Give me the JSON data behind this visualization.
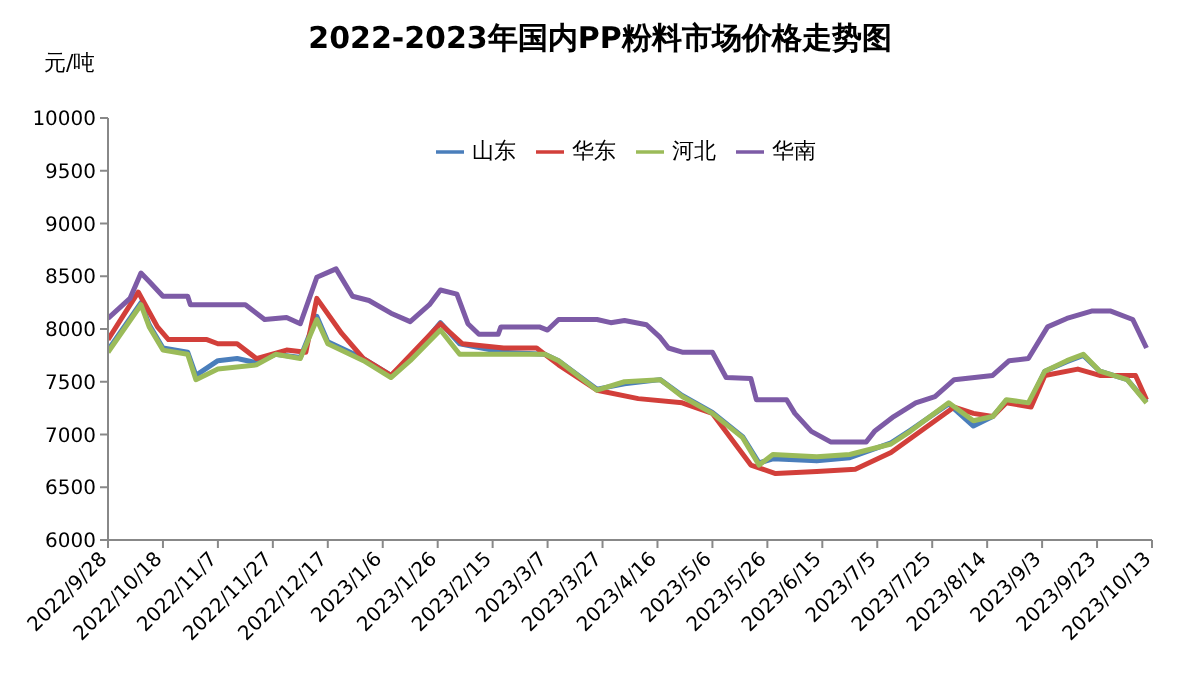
{
  "chart_data": {
    "type": "line",
    "title": "2022-2023年国内PP粉料市场价格走势图",
    "ylabel": "元/吨",
    "legend": "top",
    "marker": "none",
    "line_style": "solid",
    "xlim": [
      "2022-09-28",
      "2023-10-13"
    ],
    "xticks": [
      {
        "value": "2022-09-28",
        "label": "2022/9/28"
      },
      {
        "value": "2022-10-18",
        "label": "2022/10/18"
      },
      {
        "value": "2022-11-07",
        "label": "2022/11/7"
      },
      {
        "value": "2022-11-27",
        "label": "2022/11/27"
      },
      {
        "value": "2022-12-17",
        "label": "2022/12/17"
      },
      {
        "value": "2023-01-06",
        "label": "2023/1/6"
      },
      {
        "value": "2023-01-26",
        "label": "2023/1/26"
      },
      {
        "value": "2023-02-15",
        "label": "2023/2/15"
      },
      {
        "value": "2023-03-07",
        "label": "2023/3/7"
      },
      {
        "value": "2023-03-27",
        "label": "2023/3/27"
      },
      {
        "value": "2023-04-16",
        "label": "2023/4/16"
      },
      {
        "value": "2023-05-06",
        "label": "2023/5/6"
      },
      {
        "value": "2023-05-26",
        "label": "2023/5/26"
      },
      {
        "value": "2023-06-15",
        "label": "2023/6/15"
      },
      {
        "value": "2023-07-05",
        "label": "2023/7/5"
      },
      {
        "value": "2023-07-25",
        "label": "2023/7/25"
      },
      {
        "value": "2023-08-14",
        "label": "2023/8/14"
      },
      {
        "value": "2023-09-03",
        "label": "2023/9/3"
      },
      {
        "value": "2023-09-23",
        "label": "2023/9/23"
      },
      {
        "value": "2023-10-13",
        "label": "2023/10/13"
      }
    ],
    "ylim": [
      6000,
      10000
    ],
    "yticks": [
      6000,
      6500,
      7000,
      7500,
      8000,
      8500,
      9000,
      9500,
      10000
    ],
    "series": [
      {
        "name": "山东",
        "color": "#4a7ebb",
        "x": [
          "2022-09-28",
          "2022-10-10",
          "2022-10-13",
          "2022-10-18",
          "2022-10-27",
          "2022-10-30",
          "2022-11-07",
          "2022-11-14",
          "2022-11-21",
          "2022-11-28",
          "2022-12-07",
          "2022-12-13",
          "2022-12-17",
          "2022-12-30",
          "2023-01-09",
          "2023-01-16",
          "2023-01-27",
          "2023-02-03",
          "2023-02-19",
          "2023-03-06",
          "2023-03-11",
          "2023-03-25",
          "2023-04-04",
          "2023-04-17",
          "2023-04-25",
          "2023-05-06",
          "2023-05-17",
          "2023-05-23",
          "2023-05-28",
          "2023-06-13",
          "2023-06-25",
          "2023-07-10",
          "2023-07-17",
          "2023-07-31",
          "2023-08-09",
          "2023-08-16",
          "2023-08-21",
          "2023-08-29",
          "2023-09-04",
          "2023-09-12",
          "2023-09-18",
          "2023-09-24",
          "2023-10-04",
          "2023-10-11"
        ],
        "values": [
          7800,
          8250,
          8040,
          7820,
          7780,
          7560,
          7700,
          7720,
          7680,
          7760,
          7730,
          8120,
          7880,
          7720,
          7560,
          7720,
          8060,
          7860,
          7780,
          7760,
          7700,
          7430,
          7480,
          7520,
          7370,
          7210,
          6980,
          6730,
          6770,
          6750,
          6780,
          6920,
          7040,
          7290,
          7080,
          7170,
          7320,
          7280,
          7600,
          7690,
          7750,
          7600,
          7520,
          7310
        ]
      },
      {
        "name": "华东",
        "color": "#d23f3a",
        "x": [
          "2022-09-28",
          "2022-10-09",
          "2022-10-16",
          "2022-10-20",
          "2022-11-03",
          "2022-11-07",
          "2022-11-14",
          "2022-11-21",
          "2022-12-02",
          "2022-12-09",
          "2022-12-13",
          "2022-12-22",
          "2022-12-30",
          "2023-01-09",
          "2023-01-27",
          "2023-02-04",
          "2023-02-19",
          "2023-03-03",
          "2023-03-11",
          "2023-03-25",
          "2023-04-09",
          "2023-04-25",
          "2023-05-06",
          "2023-05-20",
          "2023-05-29",
          "2023-06-13",
          "2023-06-27",
          "2023-07-10",
          "2023-08-02",
          "2023-08-09",
          "2023-08-16",
          "2023-08-21",
          "2023-08-30",
          "2023-09-04",
          "2023-09-16",
          "2023-09-24",
          "2023-10-07",
          "2023-10-11"
        ],
        "values": [
          7900,
          8350,
          8020,
          7900,
          7900,
          7860,
          7860,
          7720,
          7800,
          7780,
          8290,
          7960,
          7720,
          7560,
          8050,
          7860,
          7820,
          7820,
          7660,
          7420,
          7340,
          7300,
          7200,
          6710,
          6630,
          6650,
          6670,
          6830,
          7260,
          7200,
          7170,
          7300,
          7260,
          7560,
          7620,
          7560,
          7560,
          7330
        ]
      },
      {
        "name": "河北",
        "color": "#9bbb59",
        "x": [
          "2022-09-28",
          "2022-10-10",
          "2022-10-13",
          "2022-10-18",
          "2022-10-27",
          "2022-10-30",
          "2022-11-07",
          "2022-11-21",
          "2022-11-28",
          "2022-12-07",
          "2022-12-13",
          "2022-12-17",
          "2022-12-30",
          "2023-01-09",
          "2023-01-16",
          "2023-01-27",
          "2023-02-03",
          "2023-02-19",
          "2023-03-06",
          "2023-03-11",
          "2023-03-25",
          "2023-04-04",
          "2023-04-17",
          "2023-04-25",
          "2023-05-06",
          "2023-05-17",
          "2023-05-23",
          "2023-05-28",
          "2023-06-13",
          "2023-06-25",
          "2023-07-10",
          "2023-07-17",
          "2023-07-31",
          "2023-08-09",
          "2023-08-16",
          "2023-08-21",
          "2023-08-29",
          "2023-09-04",
          "2023-09-12",
          "2023-09-18",
          "2023-09-24",
          "2023-10-04",
          "2023-10-11"
        ],
        "values": [
          7780,
          8230,
          8020,
          7800,
          7760,
          7520,
          7620,
          7660,
          7760,
          7720,
          8090,
          7860,
          7700,
          7540,
          7700,
          7990,
          7760,
          7760,
          7760,
          7700,
          7420,
          7500,
          7520,
          7360,
          7200,
          6970,
          6710,
          6810,
          6790,
          6810,
          6910,
          7030,
          7300,
          7130,
          7170,
          7330,
          7300,
          7600,
          7700,
          7760,
          7600,
          7520,
          7300
        ]
      },
      {
        "name": "华南",
        "color": "#7d5ba6",
        "x": [
          "2022-09-28",
          "2022-10-06",
          "2022-10-10",
          "2022-10-13",
          "2022-10-18",
          "2022-10-27",
          "2022-10-28",
          "2022-11-17",
          "2022-11-24",
          "2022-12-02",
          "2022-12-07",
          "2022-12-13",
          "2022-12-20",
          "2022-12-26",
          "2023-01-01",
          "2023-01-09",
          "2023-01-16",
          "2023-01-23",
          "2023-01-27",
          "2023-02-02",
          "2023-02-06",
          "2023-02-10",
          "2023-02-17",
          "2023-02-18",
          "2023-03-04",
          "2023-03-07",
          "2023-03-11",
          "2023-03-25",
          "2023-03-30",
          "2023-04-04",
          "2023-04-12",
          "2023-04-17",
          "2023-04-20",
          "2023-04-25",
          "2023-05-06",
          "2023-05-11",
          "2023-05-20",
          "2023-05-22",
          "2023-06-02",
          "2023-06-05",
          "2023-06-11",
          "2023-06-18",
          "2023-07-01",
          "2023-07-04",
          "2023-07-11",
          "2023-07-19",
          "2023-07-26",
          "2023-08-02",
          "2023-08-16",
          "2023-08-22",
          "2023-08-29",
          "2023-09-05",
          "2023-09-12",
          "2023-09-21",
          "2023-09-28",
          "2023-10-06",
          "2023-10-11"
        ],
        "values": [
          8100,
          8290,
          8530,
          8450,
          8310,
          8310,
          8230,
          8230,
          8090,
          8110,
          8050,
          8490,
          8570,
          8310,
          8270,
          8150,
          8070,
          8230,
          8370,
          8330,
          8050,
          7950,
          7950,
          8020,
          8020,
          7990,
          8090,
          8090,
          8060,
          8080,
          8040,
          7920,
          7820,
          7780,
          7780,
          7540,
          7530,
          7330,
          7330,
          7200,
          7030,
          6930,
          6930,
          7030,
          7170,
          7300,
          7360,
          7520,
          7560,
          7700,
          7720,
          8020,
          8100,
          8170,
          8170,
          8090,
          7820
        ]
      }
    ]
  }
}
